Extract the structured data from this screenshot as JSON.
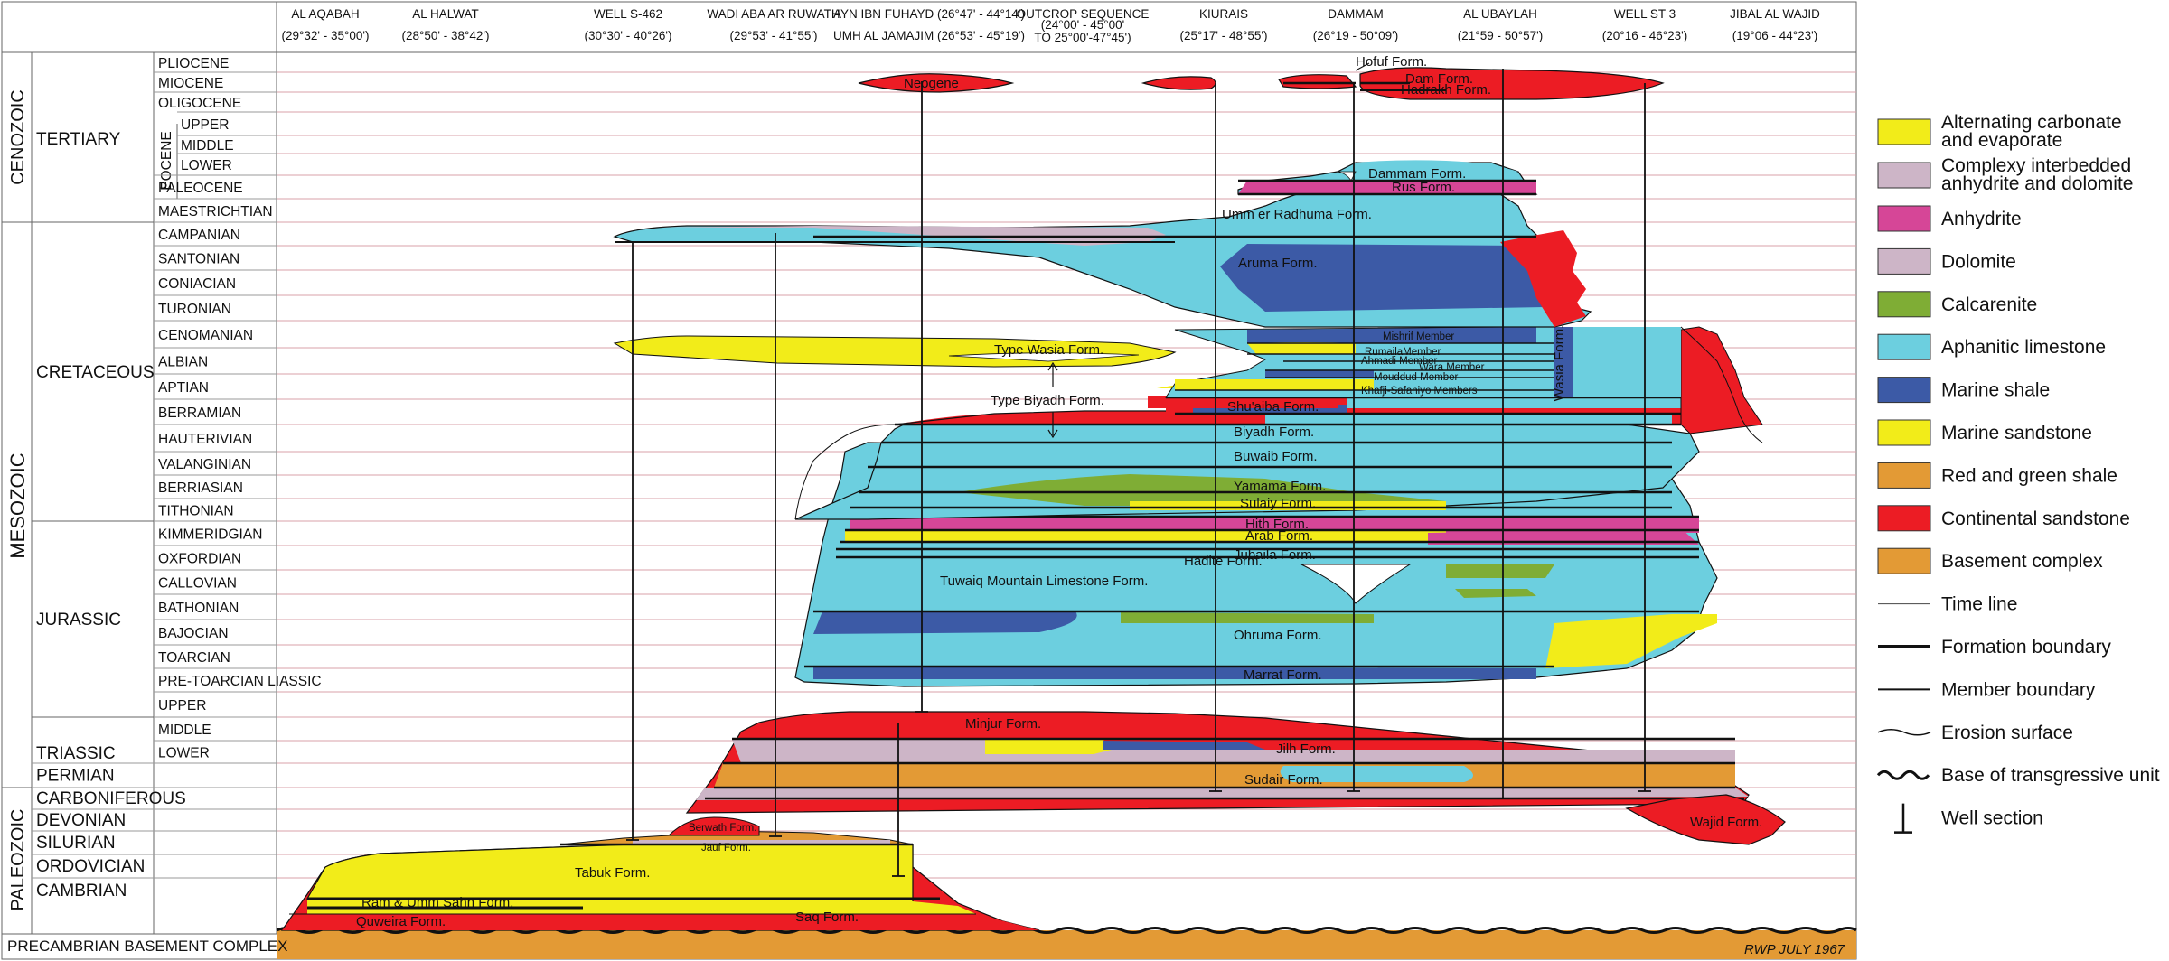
{
  "locations": [
    {
      "name": "AL AQABAH",
      "coords": "(29°32' - 35°00')"
    },
    {
      "name": "AL HALWAT",
      "coords": "(28°50' - 38°42')"
    },
    {
      "name": "WELL S-462",
      "coords": "(30°30' - 40°26')"
    },
    {
      "name": "WADI ABA AR RUWATH",
      "coords": "(29°53' - 41°55')"
    },
    {
      "name": "AYN IBN FUHAYD (26°47' - 44°14')",
      "coords": "UMH AL JAMAJIM (26°53' - 45°19')"
    },
    {
      "name": "OUTCROP SEQUENCE",
      "coords": "(24°00' - 45°00'",
      "coords2": "TO 25°00'-47°45')"
    },
    {
      "name": "KIURAIS",
      "coords": "(25°17' - 48°55')"
    },
    {
      "name": "DAMMAM",
      "coords": "(26°19 - 50°09')"
    },
    {
      "name": "AL UBAYLAH",
      "coords": "(21°59 - 50°57')"
    },
    {
      "name": "WELL ST 3",
      "coords": "(20°16 - 46°23')"
    },
    {
      "name": "JIBAL AL WAJID",
      "coords": "(19°06 - 44°23')"
    }
  ],
  "eras": {
    "cenozoic": "CENOZOIC",
    "mesozoic": "MESOZOIC",
    "paleozoic": "PALEOZOIC"
  },
  "periods": {
    "tertiary": "TERTIARY",
    "cretaceous": "CRETACEOUS",
    "jurassic": "JURASSIC",
    "triassic": "TRIASSIC",
    "eocene": "EOCENE"
  },
  "epochs": [
    "PLIOCENE",
    "MIOCENE",
    "OLIGOCENE",
    "UPPER",
    "MIDDLE",
    "LOWER",
    "PALEOCENE",
    "MAESTRICHTIAN",
    "CAMPANIAN",
    "SANTONIAN",
    "CONIACIAN",
    "TURONIAN",
    "CENOMANIAN",
    "ALBIAN",
    "APTIAN",
    "BERRAMIAN",
    "HAUTERIVIAN",
    "VALANGINIAN",
    "BERRIASIAN",
    "TITHONIAN",
    "KIMMERIDGIAN",
    "OXFORDIAN",
    "CALLOVIAN",
    "BATHONIAN",
    "BAJOCIAN",
    "TOARCIAN",
    "PRE-TOARCIAN LIASSIC",
    "UPPER",
    "MIDDLE",
    "LOWER",
    "PERMIAN",
    "CARBONIFEROUS",
    "DEVONIAN",
    "SILURIAN",
    "ORDOVICIAN",
    "CAMBRIAN"
  ],
  "basement": "PRECAMBRIAN BASEMENT COMPLEX",
  "signature": "RWP JULY 1967",
  "formations": {
    "hofuf": "Hofuf Form.",
    "dam": "Dam Form.",
    "hadrakh": "Hadrakh Form.",
    "neogene": "Neogene",
    "dammam": "Dammam Form.",
    "rus": "Rus Form.",
    "ummer": "Umm er Radhuma Form.",
    "aruma": "Aruma Form.",
    "tuwasi": "Type Wasia Form.",
    "mishrif": "Mishrif Member",
    "rumaila": "RumailaMember",
    "ahmadi": "Ahmadi Member",
    "wara": "Wara Member",
    "mouddud": "Mouddud Member",
    "khafji": "Khafji-Safaniyo Members",
    "wasia": "Wasia Form.",
    "tybiyadh": "Type Biyadh Form.",
    "shuaiba": "Shu'aiba Form.",
    "biyadh": "Biyadh Form.",
    "buwaib": "Buwaib Form.",
    "yamama": "Yamama Form.",
    "sulaiy": "Sulaiy Form.",
    "hith": "Hith Form.",
    "arab": "Arab Form.",
    "hadite": "Hadite Form.",
    "jubaila": "Jubaila Form.",
    "tuwaiq": "Tuwaiq Mountain Limestone Form.",
    "dhruma": "Ohruma Form.",
    "marrat": "Marrat Form.",
    "minjur": "Minjur Form.",
    "jilh": "Jilh Form.",
    "sudair": "Sudair Form.",
    "wajid": "Wajid Form.",
    "berwath": "Berwath Form.",
    "jauf": "Jauf Form.",
    "tabuk": "Tabuk Form.",
    "ramumm": "Ram & Umm Sahn Form.",
    "quweira": "Quweira Form.",
    "saq": "Saq Form."
  },
  "legend": [
    {
      "label": "Alternating carbonate",
      "label2": "and evaporate",
      "color": "#f2ec19",
      "kind": "fill"
    },
    {
      "label": "Complexy interbedded",
      "label2": "anhydrite and dolomite",
      "color": "#cdb5c7",
      "kind": "fill"
    },
    {
      "label": "Anhydrite",
      "color": "#d64697",
      "kind": "fill"
    },
    {
      "label": "Dolomite",
      "color": "#cdb5c7",
      "kind": "fill"
    },
    {
      "label": "Calcarenite",
      "color": "#7fad35",
      "kind": "fill"
    },
    {
      "label": "Aphanitic limestone",
      "color": "#6ccfdf",
      "kind": "fill"
    },
    {
      "label": "Marine shale",
      "color": "#3c5aa6",
      "kind": "fill"
    },
    {
      "label": "Marine sandstone",
      "color": "#f2ec19",
      "kind": "fill"
    },
    {
      "label": "Red and green shale",
      "color": "#e39a35",
      "kind": "fill"
    },
    {
      "label": "Continental sandstone",
      "color": "#ec1c24",
      "kind": "fill"
    },
    {
      "label": "Basement complex",
      "color": "#e39a35",
      "kind": "fill"
    },
    {
      "label": "Time line",
      "kind": "thin"
    },
    {
      "label": "Formation boundary",
      "kind": "thick"
    },
    {
      "label": "Member boundary",
      "kind": "medium"
    },
    {
      "label": "Erosion surface",
      "kind": "wave"
    },
    {
      "label": "Base of transgressive unit",
      "kind": "bigwave"
    },
    {
      "label": "Well section",
      "kind": "well"
    }
  ]
}
